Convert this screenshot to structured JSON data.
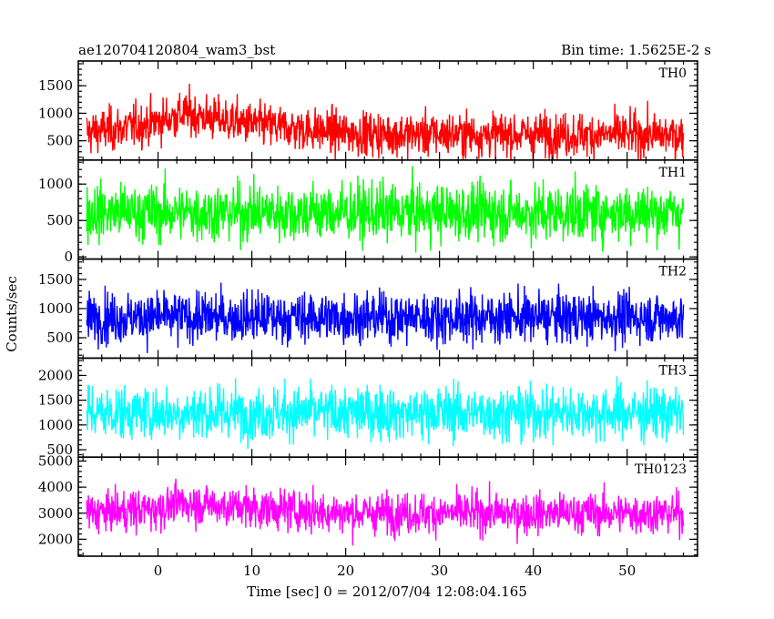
{
  "title_left": "ae120704120804_wam3_bst",
  "title_right": "Bin time: 1.5625E-2 s",
  "xlabel": "Time [sec] 0 = 2012/07/04 12:08:04.165",
  "ylabel": "Counts/sec",
  "chart_data": {
    "type": "line",
    "x_range": [
      -8.5,
      57.5
    ],
    "x_data_range": [
      -7.6,
      56.0
    ],
    "x_ticks": [
      0,
      10,
      20,
      30,
      40,
      50
    ],
    "x_tick_labels": [
      "0",
      "10",
      "20",
      "30",
      "40",
      "50"
    ],
    "bin_time_s": 0.015625,
    "panels": [
      {
        "name": "TH0",
        "color": "#ff0000",
        "ylim": [
          150,
          1950
        ],
        "y_ticks": [
          500,
          1000,
          1500
        ],
        "y_tick_labels": [
          "500",
          "1000",
          "1500"
        ],
        "mean_profile": [
          [
            -7.6,
            650
          ],
          [
            -3,
            750
          ],
          [
            0,
            850
          ],
          [
            3,
            1000
          ],
          [
            6,
            900
          ],
          [
            10,
            800
          ],
          [
            15,
            720
          ],
          [
            20,
            640
          ],
          [
            25,
            620
          ],
          [
            35,
            620
          ],
          [
            45,
            610
          ],
          [
            56,
            600
          ]
        ],
        "spread": 330
      },
      {
        "name": "TH1",
        "color": "#00ff00",
        "ylim": [
          -30,
          1330
        ],
        "y_ticks": [
          0,
          500,
          1000
        ],
        "y_tick_labels": [
          "0",
          "500",
          "1000"
        ],
        "mean_profile": [
          [
            -7.6,
            610
          ],
          [
            56,
            610
          ]
        ],
        "spread": 330
      },
      {
        "name": "TH2",
        "color": "#0000ff",
        "ylim": [
          150,
          1850
        ],
        "y_ticks": [
          500,
          1000,
          1500
        ],
        "y_tick_labels": [
          "500",
          "1000",
          "1500"
        ],
        "mean_profile": [
          [
            -7.6,
            850
          ],
          [
            56,
            850
          ]
        ],
        "spread": 360
      },
      {
        "name": "TH3",
        "color": "#00ffff",
        "ylim": [
          350,
          2350
        ],
        "y_ticks": [
          500,
          1000,
          1500,
          2000
        ],
        "y_tick_labels": [
          "500",
          "1000",
          "1500",
          "2000"
        ],
        "mean_profile": [
          [
            -7.6,
            1250
          ],
          [
            56,
            1250
          ]
        ],
        "spread": 450
      },
      {
        "name": "TH0123",
        "color": "#ff00ff",
        "ylim": [
          1350,
          5150
        ],
        "y_ticks": [
          2000,
          3000,
          4000,
          5000
        ],
        "y_tick_labels": [
          "2000",
          "3000",
          "4000",
          "5000"
        ],
        "mean_profile": [
          [
            -7.6,
            3000
          ],
          [
            -3,
            3100
          ],
          [
            0,
            3200
          ],
          [
            3,
            3400
          ],
          [
            6,
            3300
          ],
          [
            10,
            3200
          ],
          [
            20,
            3000
          ],
          [
            56,
            3000
          ]
        ],
        "spread": 650
      }
    ]
  }
}
